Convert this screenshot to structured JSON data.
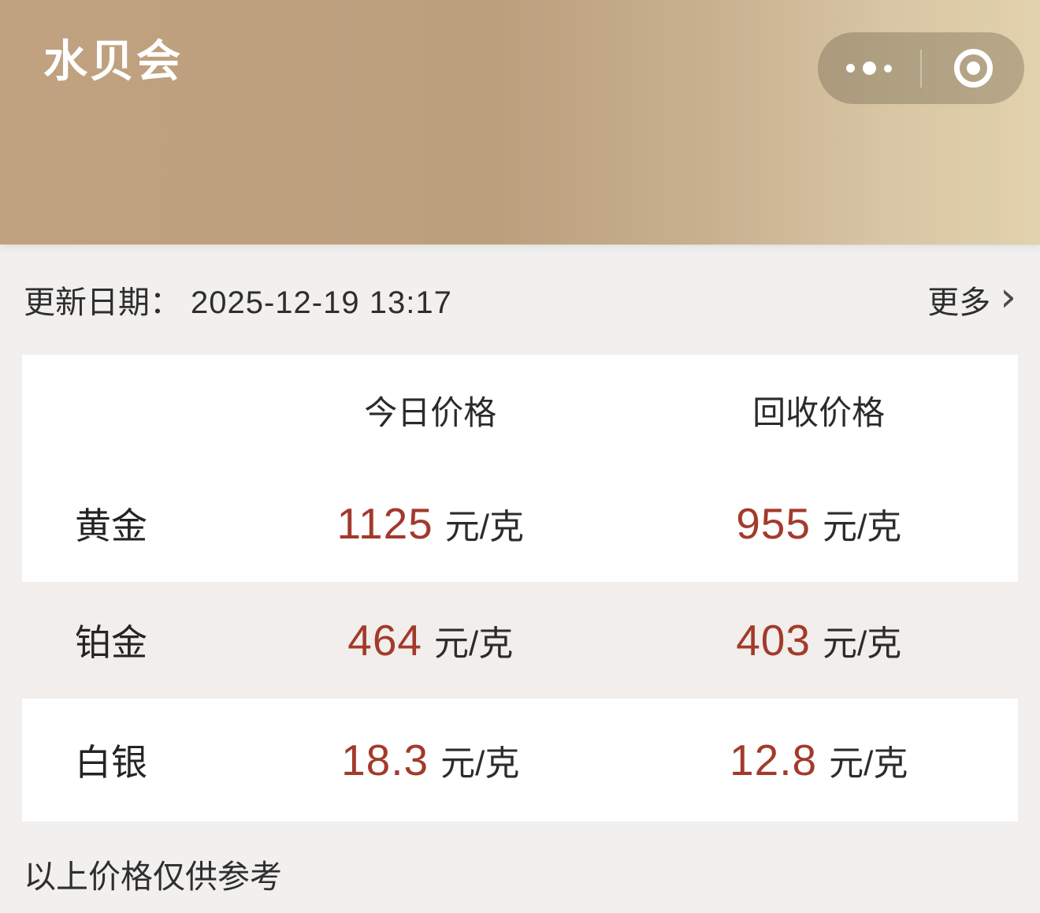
{
  "app": {
    "title": "水贝会"
  },
  "capsule": {
    "more_tooltip": "更多",
    "close_tooltip": "关闭"
  },
  "update_bar": {
    "label": "更新日期：",
    "datetime": "2025-12-19 13:17",
    "more_label": "更多",
    "chevron": "›"
  },
  "price_table": {
    "columns": [
      "今日价格",
      "回收价格"
    ],
    "rows": [
      {
        "name": "黄金",
        "today": "1125",
        "recycle": "955",
        "unit": "元/克"
      },
      {
        "name": "铂金",
        "today": "464",
        "recycle": "403",
        "unit": "元/克"
      },
      {
        "name": "白银",
        "today": "18.3",
        "recycle": "12.8",
        "unit": "元/克"
      }
    ]
  },
  "footer": {
    "disclaimer": "以上价格仅供参考"
  },
  "colors": {
    "accent_red": "#a33a2b",
    "header_gradient_start": "#c0a180",
    "header_gradient_end": "#e3d2ae",
    "page_bg": "#f1f0ee",
    "card_bg": "#ffffff",
    "row_alt_bg": "#f1eeeb",
    "title_color": "#ffffff",
    "text_dark": "#2c2c2c"
  }
}
